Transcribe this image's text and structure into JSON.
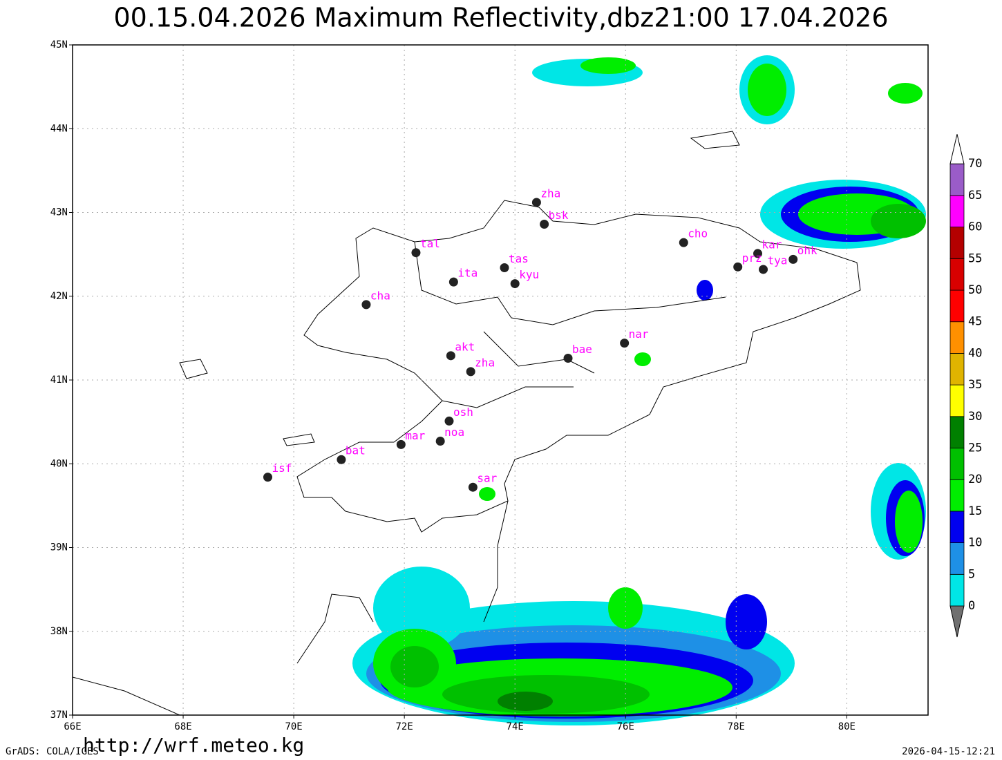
{
  "title": "00.15.04.2026  Maximum  Reflectivity,dbz21:00  17.04.2026",
  "map": {
    "lonlim": [
      66,
      81.47
    ],
    "latlim": [
      37,
      45
    ],
    "lon_ticks": [
      {
        "value": 66,
        "label": "66E"
      },
      {
        "value": 68,
        "label": "68E"
      },
      {
        "value": 70,
        "label": "70E"
      },
      {
        "value": 72,
        "label": "72E"
      },
      {
        "value": 74,
        "label": "74E"
      },
      {
        "value": 76,
        "label": "76E"
      },
      {
        "value": 78,
        "label": "78E"
      },
      {
        "value": 80,
        "label": "80E"
      }
    ],
    "lat_ticks": [
      {
        "value": 37,
        "label": "37N"
      },
      {
        "value": 38,
        "label": "38N"
      },
      {
        "value": 39,
        "label": "39N"
      },
      {
        "value": 40,
        "label": "40N"
      },
      {
        "value": 41,
        "label": "41N"
      },
      {
        "value": 42,
        "label": "42N"
      },
      {
        "value": 43,
        "label": "43N"
      },
      {
        "value": 44,
        "label": "44N"
      },
      {
        "value": 45,
        "label": "45N"
      }
    ],
    "grid": true
  },
  "stations": [
    {
      "label": "zha",
      "lon": 74.39,
      "lat": 43.12
    },
    {
      "label": "bsk",
      "lon": 74.53,
      "lat": 42.86
    },
    {
      "label": "tal",
      "lon": 72.21,
      "lat": 42.52
    },
    {
      "label": "tas",
      "lon": 73.81,
      "lat": 42.34
    },
    {
      "label": "kyu",
      "lon": 74.0,
      "lat": 42.15
    },
    {
      "label": "ita",
      "lon": 72.89,
      "lat": 42.17
    },
    {
      "label": "cha",
      "lon": 71.31,
      "lat": 41.9
    },
    {
      "label": "cho",
      "lon": 77.05,
      "lat": 42.64
    },
    {
      "label": "kar",
      "lon": 78.39,
      "lat": 42.51
    },
    {
      "label": "prz",
      "lon": 78.03,
      "lat": 42.35
    },
    {
      "label": "tya",
      "lon": 78.49,
      "lat": 42.32
    },
    {
      "label": "ohk",
      "lon": 79.03,
      "lat": 42.44
    },
    {
      "label": "nar",
      "lon": 75.98,
      "lat": 41.44
    },
    {
      "label": "bae",
      "lon": 74.96,
      "lat": 41.26
    },
    {
      "label": "akt",
      "lon": 72.84,
      "lat": 41.29
    },
    {
      "label": "zha",
      "lon": 73.2,
      "lat": 41.1
    },
    {
      "label": "osh",
      "lon": 72.81,
      "lat": 40.51
    },
    {
      "label": "mar",
      "lon": 71.94,
      "lat": 40.23
    },
    {
      "label": "noa",
      "lon": 72.65,
      "lat": 40.27
    },
    {
      "label": "bat",
      "lon": 70.86,
      "lat": 40.05
    },
    {
      "label": "isf",
      "lon": 69.53,
      "lat": 39.84
    },
    {
      "label": "sar",
      "lon": 73.24,
      "lat": 39.72
    }
  ],
  "colorbar": {
    "levels": [
      0,
      5,
      10,
      15,
      20,
      25,
      30,
      35,
      40,
      45,
      50,
      55,
      60,
      65,
      70
    ],
    "colors": [
      "#00e6e6",
      "#1e90e6",
      "#0000f0",
      "#00ee00",
      "#00c000",
      "#008000",
      "#ffff00",
      "#e0b400",
      "#ff9000",
      "#ff0000",
      "#d80000",
      "#b40000",
      "#ff00ff",
      "#9a5cc8"
    ],
    "under_color": "#707070",
    "over_color": "#ffffff"
  },
  "footer": {
    "url": "http://wrf.meteo.kg",
    "software": "GrADS: COLA/IGES",
    "timestamp": "2026-04-15-12:21"
  }
}
